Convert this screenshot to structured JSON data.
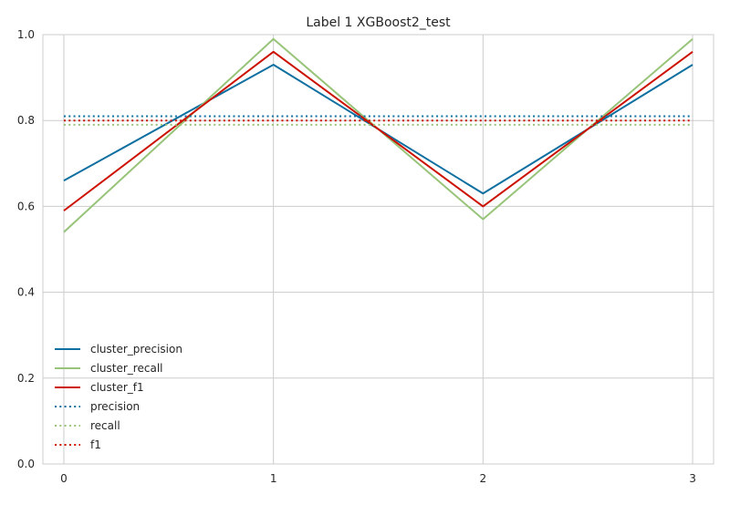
{
  "chart_data": {
    "type": "line",
    "title": "Label 1 XGBoost2_test",
    "xlabel": "",
    "ylabel": "",
    "x": [
      0,
      1,
      2,
      3
    ],
    "xlim": [
      -0.1,
      3.1
    ],
    "ylim": [
      0.0,
      1.0
    ],
    "xticks": [
      "0",
      "1",
      "2",
      "3"
    ],
    "yticks": [
      "0.0",
      "0.2",
      "0.4",
      "0.6",
      "0.8",
      "1.0"
    ],
    "grid": true,
    "legend_position": "lower-left",
    "series": [
      {
        "name": "cluster_precision",
        "style": "solid",
        "color": "#0e6fa0",
        "values": [
          0.66,
          0.93,
          0.63,
          0.93
        ]
      },
      {
        "name": "cluster_recall",
        "style": "solid",
        "color": "#98c47a",
        "values": [
          0.54,
          0.99,
          0.57,
          0.99
        ]
      },
      {
        "name": "cluster_f1",
        "style": "solid",
        "color": "#cc1100",
        "values": [
          0.59,
          0.96,
          0.6,
          0.96
        ]
      },
      {
        "name": "precision",
        "style": "dotted",
        "color": "#0e6fa0",
        "values": [
          0.81,
          0.81,
          0.81,
          0.81
        ]
      },
      {
        "name": "recall",
        "style": "dotted",
        "color": "#98c47a",
        "values": [
          0.79,
          0.79,
          0.79,
          0.79
        ]
      },
      {
        "name": "f1",
        "style": "dotted",
        "color": "#cc1100",
        "values": [
          0.8,
          0.8,
          0.8,
          0.8
        ]
      }
    ]
  }
}
